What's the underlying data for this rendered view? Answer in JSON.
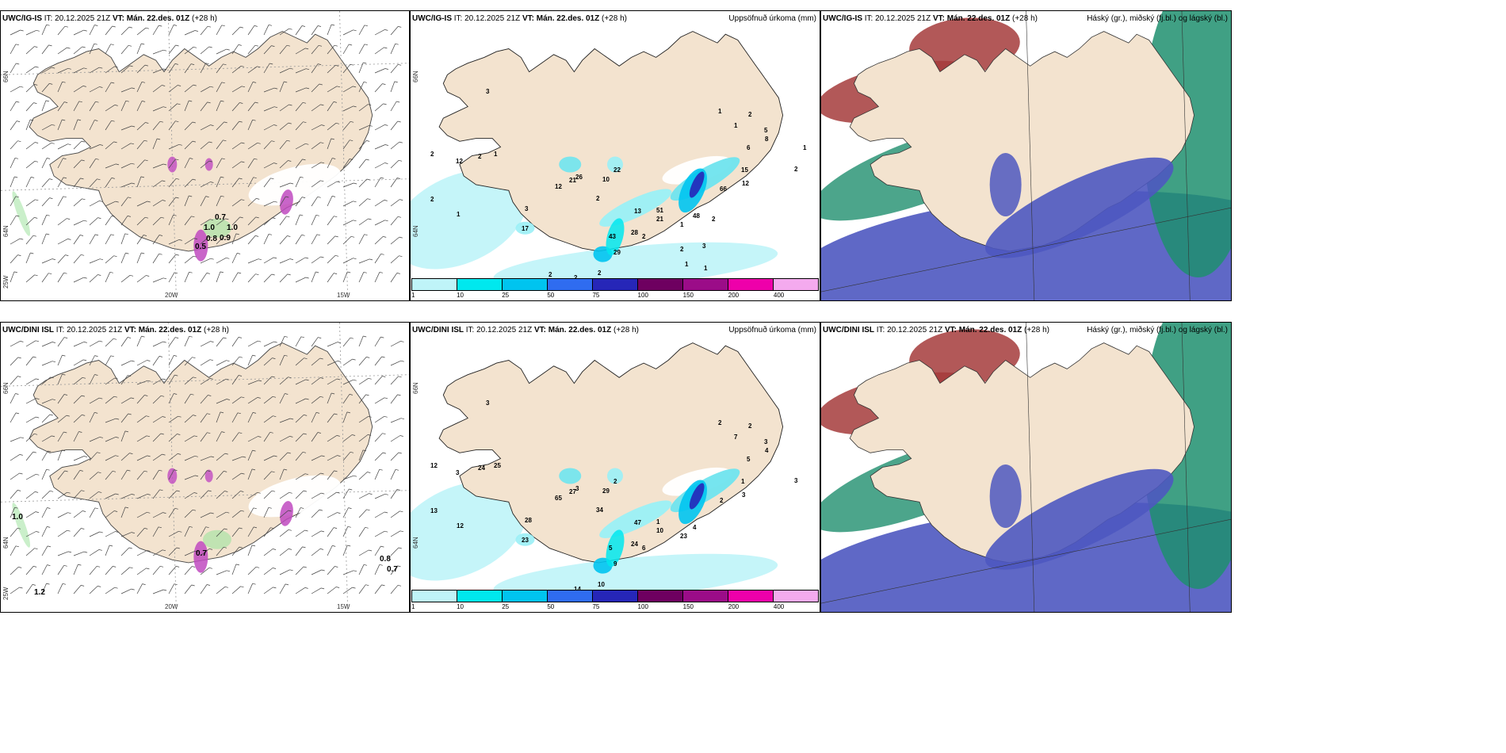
{
  "panels": [
    {
      "model": "UWC/IG-IS",
      "it_label": "IT:",
      "it_value": "20.12.2025 21Z",
      "vt_label": "VT:",
      "vt_value": "Mán. 22.des. 01Z",
      "lead": "(+28 h)",
      "right_title": "",
      "axis": {
        "lat66": "66N",
        "lat64": "64N",
        "lon25": "25W",
        "lon20": "20W",
        "lon15": "15W"
      },
      "values": [
        "0.7",
        "1.0",
        "0.8",
        "0.9",
        "1.0",
        "0.5"
      ]
    },
    {
      "model": "UWC/IG-IS",
      "it_label": "IT:",
      "it_value": "20.12.2025 21Z",
      "vt_label": "VT:",
      "vt_value": "Mán. 22.des. 01Z",
      "lead": "(+28 h)",
      "right_title": "Uppsöfnuð úrkoma (mm)",
      "axis": {
        "lat66": "66N",
        "lat64": "64N"
      },
      "values": [
        "3",
        "2",
        "12",
        "2",
        "1",
        "2",
        "1",
        "26",
        "22",
        "12",
        "21",
        "10",
        "2",
        "3",
        "17",
        "13",
        "51",
        "21",
        "2",
        "1",
        "28",
        "43",
        "29",
        "2",
        "2",
        "48",
        "66",
        "15",
        "12",
        "6",
        "8",
        "5",
        "2",
        "1",
        "1",
        "2",
        "1",
        "2",
        "2",
        "3",
        "2",
        "1",
        "1"
      ]
    },
    {
      "model": "UWC/IG-IS",
      "it_label": "IT:",
      "it_value": "20.12.2025 21Z",
      "vt_label": "VT:",
      "vt_value": "Mán. 22.des. 01Z",
      "lead": "(+28 h)",
      "right_title": "Háský (gr.), miðský (fj.bl.) og lágský (bl.)"
    },
    {
      "model": "UWC/DINI ISL",
      "it_label": "IT:",
      "it_value": "20.12.2025 21Z",
      "vt_label": "VT:",
      "vt_value": "Mán. 22.des. 01Z",
      "lead": "(+28 h)",
      "right_title": "",
      "axis": {
        "lat66": "66N",
        "lat64": "64N",
        "lon25": "25W",
        "lon20": "20W",
        "lon15": "15W"
      },
      "values": [
        "1.0",
        "1.2",
        "0.7",
        "0.8",
        "0.7"
      ]
    },
    {
      "model": "UWC/DINI ISL",
      "it_label": "IT:",
      "it_value": "20.12.2025 21Z",
      "vt_label": "VT:",
      "vt_value": "Mán. 22.des. 01Z",
      "lead": "(+28 h)",
      "right_title": "Uppsöfnuð úrkoma (mm)",
      "axis": {
        "lat66": "66N",
        "lat64": "64N"
      },
      "values": [
        "3",
        "12",
        "3",
        "24",
        "25",
        "13",
        "12",
        "3",
        "2",
        "65",
        "27",
        "29",
        "34",
        "28",
        "23",
        "47",
        "1",
        "10",
        "6",
        "23",
        "24",
        "5",
        "9",
        "10",
        "14",
        "4",
        "2",
        "1",
        "3",
        "5",
        "4",
        "3",
        "2",
        "2",
        "7",
        "3"
      ]
    },
    {
      "model": "UWC/DINI ISL",
      "it_label": "IT:",
      "it_value": "20.12.2025 21Z",
      "vt_label": "VT:",
      "vt_value": "Mán. 22.des. 01Z",
      "lead": "(+28 h)",
      "right_title": "Háský (gr.), miðský (fj.bl.) og lágský (bl.)"
    }
  ],
  "legend": {
    "ticks": [
      "1",
      "10",
      "25",
      "50",
      "75",
      "100",
      "150",
      "200",
      "400"
    ],
    "colors": [
      "#bff4f8",
      "#00e8ee",
      "#00c4ef",
      "#2f6cf0",
      "#2626b8",
      "#6e0060",
      "#9b0c88",
      "#ee00aa",
      "#f4aaee"
    ]
  },
  "colors": {
    "land": "#f3e3cf",
    "wind_land": "#eedcc6",
    "precip_light": "#bff4f8",
    "cloud_high": "#1f8f6e",
    "cloud_mid": "#a53b3b",
    "cloud_low": "#4e58c0"
  }
}
